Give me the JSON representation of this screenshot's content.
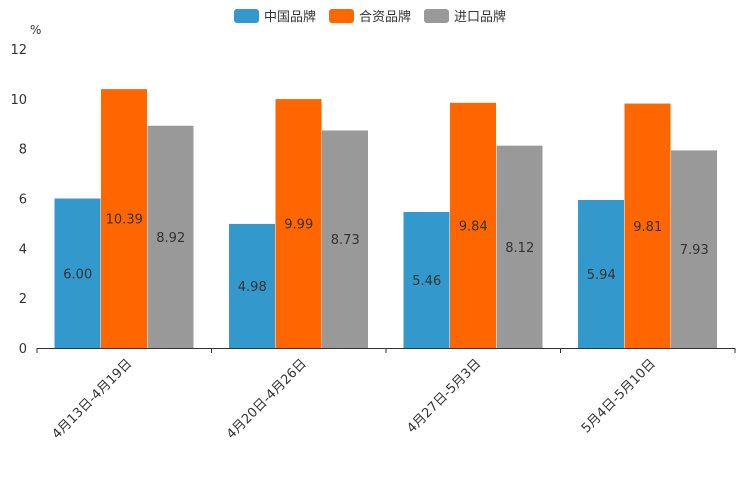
{
  "chart_data": {
    "type": "bar",
    "unit": "%",
    "categories": [
      "4月13日-4月19日",
      "4月20日-4月26日",
      "4月27日-5月3日",
      "5月4日-5月10日"
    ],
    "series": [
      {
        "name": "中国品牌",
        "color": "#3399cc",
        "values": [
          "6.00",
          "4.98",
          "5.46",
          "5.94"
        ]
      },
      {
        "name": "合资品牌",
        "color": "#ff6600",
        "values": [
          "10.39",
          "9.99",
          "9.84",
          "9.81"
        ]
      },
      {
        "name": "进口品牌",
        "color": "#999999",
        "values": [
          "8.92",
          "8.73",
          "8.12",
          "7.93"
        ]
      }
    ],
    "yticks": [
      "0",
      "2",
      "4",
      "6",
      "8",
      "10",
      "12"
    ],
    "ylim": [
      0,
      12
    ],
    "legend_position": "top-center",
    "grid": false
  }
}
